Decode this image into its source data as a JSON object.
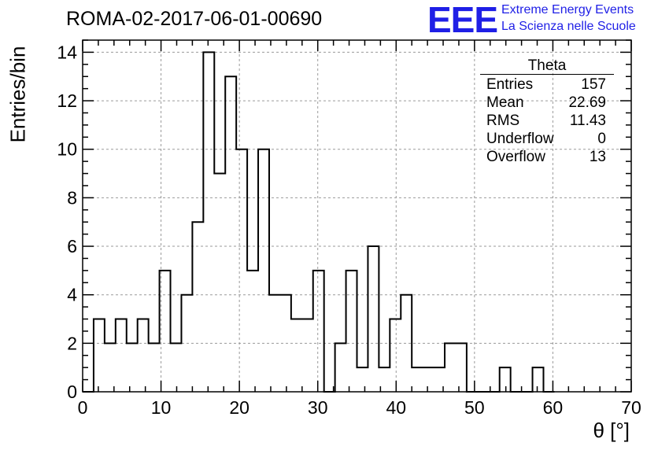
{
  "title": "ROMA-02-2017-06-01-00690",
  "logo": {
    "mark": "EEE",
    "line1": "Extreme Energy Events",
    "line2": "La Scienza nelle Scuole",
    "color": "#1f1fe6"
  },
  "stats": {
    "title": "Theta",
    "rows": [
      {
        "label": "Entries",
        "value": "157"
      },
      {
        "label": "Mean",
        "value": "22.69"
      },
      {
        "label": "RMS",
        "value": "11.43"
      },
      {
        "label": "Underflow",
        "value": "0"
      },
      {
        "label": "Overflow",
        "value": "13"
      }
    ]
  },
  "chart_data": {
    "type": "bar",
    "style": "step-histogram",
    "xlabel": "θ [°]",
    "ylabel": "Entries/bin",
    "xlim": [
      0,
      70
    ],
    "ylim": [
      0,
      14.5
    ],
    "xticks": [
      0,
      10,
      20,
      30,
      40,
      50,
      60,
      70
    ],
    "yticks": [
      0,
      2,
      4,
      6,
      8,
      10,
      12,
      14
    ],
    "grid": true,
    "bin_edges": [
      0,
      1.4,
      2.8,
      4.2,
      5.6,
      7.0,
      8.4,
      9.8,
      11.2,
      12.6,
      14.0,
      15.4,
      16.8,
      18.2,
      19.6,
      21.0,
      22.4,
      23.8,
      25.2,
      26.6,
      28.0,
      29.4,
      30.8,
      32.2,
      33.6,
      35.0,
      36.4,
      37.8,
      39.2,
      40.6,
      42.0,
      43.4,
      44.8,
      46.2,
      47.6,
      49.0,
      50.4,
      51.8,
      53.2,
      54.6,
      56.0,
      57.4,
      58.8,
      60.2
    ],
    "values": [
      0,
      3,
      2,
      3,
      2,
      3,
      2,
      5,
      2,
      4,
      7,
      14,
      9,
      13,
      10,
      5,
      10,
      4,
      4,
      3,
      3,
      5,
      0,
      2,
      5,
      1,
      6,
      1,
      3,
      4,
      1,
      1,
      1,
      2,
      2,
      0,
      0,
      0,
      1,
      0,
      0,
      1,
      0
    ]
  }
}
